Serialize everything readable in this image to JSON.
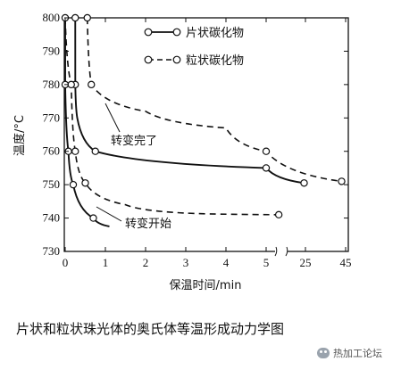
{
  "chart_data": {
    "type": "line",
    "ylabel": "温度/°C",
    "xlabel": "保温时间/min",
    "yticks": [
      730,
      740,
      750,
      760,
      770,
      780,
      790,
      800
    ],
    "ylim": [
      730,
      800
    ],
    "xticks": [
      "0",
      "1",
      "2",
      "3",
      "4",
      "5",
      "25",
      "45"
    ],
    "x_axis_break": "between 5 and 25",
    "legend": [
      {
        "label": "片状碳化物",
        "style": "solid"
      },
      {
        "label": "粒状碳化物",
        "style": "dashed"
      }
    ],
    "annotations": [
      {
        "text": "转变完了"
      },
      {
        "text": "转变开始"
      }
    ],
    "series": [
      {
        "name": "片状碳化物",
        "phase": "转变开始",
        "style": "solid",
        "points": [
          [
            0.0,
            800
          ],
          [
            0.0,
            780
          ],
          [
            0.08,
            760
          ],
          [
            0.2,
            750
          ],
          [
            0.7,
            740
          ],
          [
            1.1,
            737.5
          ]
        ]
      },
      {
        "name": "片状碳化物",
        "phase": "转变完了",
        "style": "solid",
        "points": [
          [
            0.25,
            800
          ],
          [
            0.25,
            780
          ],
          [
            0.3,
            770
          ],
          [
            0.75,
            760
          ],
          [
            5.0,
            755
          ],
          [
            24.0,
            750.5
          ]
        ]
      },
      {
        "name": "粒状碳化物",
        "phase": "转变开始",
        "style": "dashed",
        "points": [
          [
            0.0,
            800
          ],
          [
            0.15,
            780
          ],
          [
            0.25,
            760
          ],
          [
            0.5,
            750.5
          ],
          [
            1.5,
            744
          ],
          [
            3.0,
            741.5
          ],
          [
            5.1,
            741
          ]
        ]
      },
      {
        "name": "粒状碳化物",
        "phase": "转变完了",
        "style": "dashed",
        "points": [
          [
            0.55,
            800
          ],
          [
            0.65,
            780
          ],
          [
            2.0,
            772
          ],
          [
            4.0,
            767
          ],
          [
            5.0,
            760
          ],
          [
            43.0,
            751
          ]
        ]
      }
    ],
    "markers": [
      [
        0.0,
        800
      ],
      [
        0.25,
        800
      ],
      [
        0.55,
        800
      ],
      [
        0.0,
        780
      ],
      [
        0.25,
        780
      ],
      [
        0.65,
        780
      ],
      [
        0.08,
        760
      ],
      [
        0.25,
        760
      ],
      [
        0.75,
        760
      ],
      [
        0.2,
        750
      ],
      [
        0.5,
        750.5
      ],
      [
        0.7,
        740
      ],
      [
        5.1,
        741
      ],
      [
        5.0,
        760
      ],
      [
        5.0,
        755
      ],
      [
        24.0,
        750.5
      ],
      [
        43.0,
        751
      ],
      [
        0.15,
        780
      ]
    ],
    "grid": false,
    "legend_position": "top-right"
  },
  "caption": "片状和粒状珠光体的奥氏体等温形成动力学图",
  "watermark": "热加工论坛"
}
